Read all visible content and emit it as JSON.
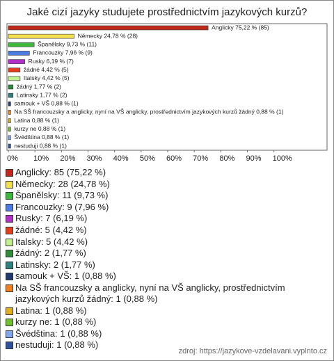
{
  "chart_data": {
    "type": "barh",
    "title": "Jaké cizí jazyky studujete prostřednictvím jazykových kurzů?",
    "values": [
      75.22,
      24.78,
      9.73,
      7.96,
      6.19,
      4.42,
      4.42,
      1.77,
      1.77,
      0.88,
      0.88,
      0.88,
      0.88,
      0.88,
      0.88
    ],
    "value_labels": [
      "Anglicky 75,22 % (85)",
      "Německy 24,78 % (28)",
      "Španělsky 9,73 % (11)",
      "Francouzky 7,96 % (9)",
      "Rusky 6,19 % (7)",
      "žádné 4,42 % (5)",
      "Italsky 4,42 % (5)",
      "žádný 1,77 % (2)",
      "Latinsky 1,77 % (2)",
      "samouk + VŠ 0,88 % (1)",
      "Na SŠ francouzsky a anglicky, nyní na VŠ anglicky, prostřednictvím jazykových kurzů žádný 0,88 % (1)",
      "Latina 0,88 % (1)",
      "kurzy ne 0,88 % (1)",
      "Švédština 0,88 % (1)",
      "nestuduji 0,88 % (1)"
    ],
    "legend_labels": [
      "Anglicky: 85 (75,22 %)",
      "Německy: 28 (24,78 %)",
      "Španělsky: 11 (9,73 %)",
      "Francouzky: 9 (7,96 %)",
      "Rusky: 7 (6,19 %)",
      "žádné: 5 (4,42 %)",
      "Italsky: 5 (4,42 %)",
      "žádný: 2 (1,77 %)",
      "Latinsky: 2 (1,77 %)",
      "samouk + VŠ: 1 (0,88 %)",
      "Na SŠ francouzsky a anglicky, nyní na VŠ anglicky, prostřednictvím jazykových kurzů žádný: 1 (0,88 %)",
      "Latina: 1 (0,88 %)",
      "kurzy ne: 1 (0,88 %)",
      "Švédština: 1 (0,88 %)",
      "nestuduji: 1 (0,88 %)"
    ],
    "colors": [
      "#c0281c",
      "#f5e050",
      "#3cb83c",
      "#4c7ce0",
      "#b030c8",
      "#e04020",
      "#c0f090",
      "#2f8a3a",
      "#2e8080",
      "#1e3a6e",
      "#f08020",
      "#e0b020",
      "#70c030",
      "#80a8f0",
      "#3050a0"
    ],
    "xlim": [
      0,
      120
    ],
    "xticks": [
      {
        "value": 0,
        "label": "0%"
      },
      {
        "value": 10,
        "label": "10%"
      },
      {
        "value": 20,
        "label": "20%"
      },
      {
        "value": 30,
        "label": "30%"
      },
      {
        "value": 40,
        "label": "40%"
      },
      {
        "value": 50,
        "label": "50%"
      },
      {
        "value": 60,
        "label": "60%"
      },
      {
        "value": 70,
        "label": "70%"
      },
      {
        "value": 80,
        "label": "80%"
      },
      {
        "value": 90,
        "label": "90%"
      },
      {
        "value": 100,
        "label": "100%"
      }
    ],
    "source": "zdroj: https://jazykove-vzdelavani.vyplnto.cz"
  }
}
